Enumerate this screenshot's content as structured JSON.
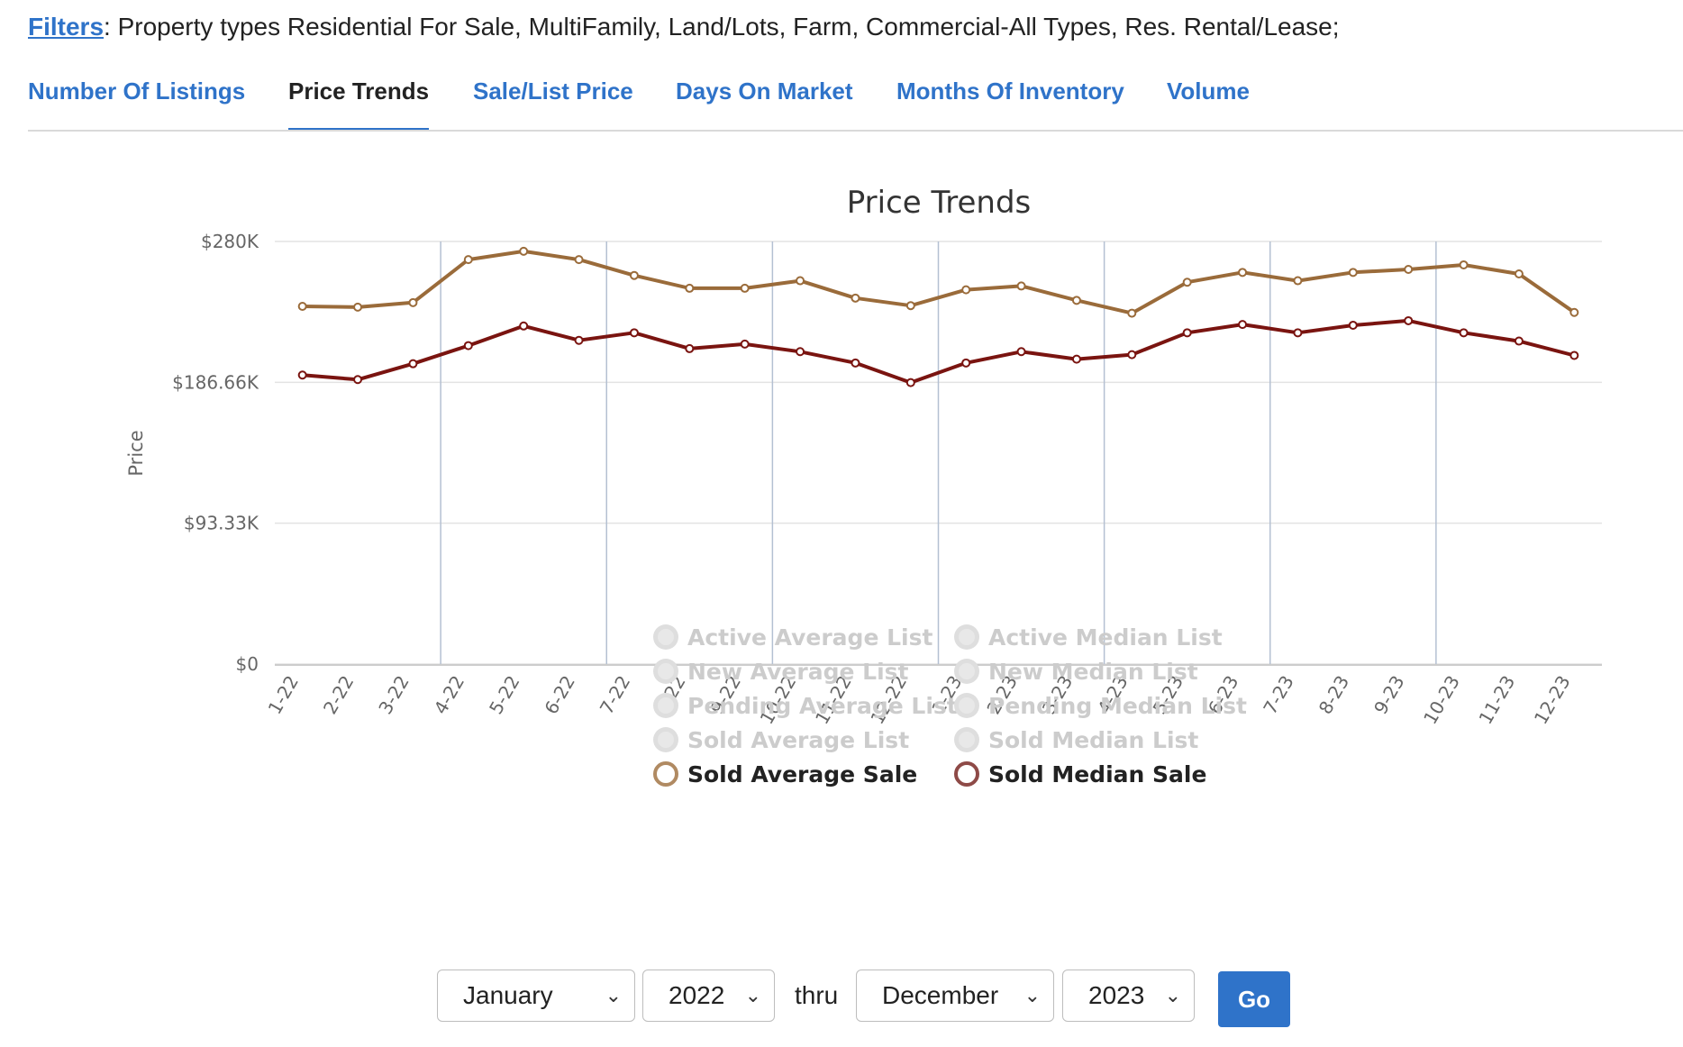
{
  "filters": {
    "link_label": "Filters",
    "text": ": Property types Residential For Sale, MultiFamily, Land/Lots, Farm, Commercial-All Types, Res. Rental/Lease;"
  },
  "tabs": [
    {
      "label": "Number Of Listings",
      "active": false
    },
    {
      "label": "Price Trends",
      "active": true
    },
    {
      "label": "Sale/List Price",
      "active": false
    },
    {
      "label": "Days On Market",
      "active": false
    },
    {
      "label": "Months Of Inventory",
      "active": false
    },
    {
      "label": "Volume",
      "active": false
    }
  ],
  "chart_data": {
    "type": "line",
    "title": "Price Trends",
    "xlabel": "",
    "ylabel": "Price",
    "ylim": [
      0,
      280000
    ],
    "y_ticks": [
      {
        "value": 0,
        "label": "$0"
      },
      {
        "value": 93333,
        "label": "$93.33K"
      },
      {
        "value": 186666,
        "label": "$186.66K"
      },
      {
        "value": 280000,
        "label": "$280K"
      }
    ],
    "grid": true,
    "categories": [
      "1-22",
      "2-22",
      "3-22",
      "4-22",
      "5-22",
      "6-22",
      "7-22",
      "8-22",
      "9-22",
      "10-22",
      "11-22",
      "12-22",
      "1-23",
      "2-23",
      "3-23",
      "4-23",
      "5-23",
      "6-23",
      "7-23",
      "8-23",
      "9-23",
      "10-23",
      "11-23",
      "12-23"
    ],
    "series": [
      {
        "name": "Sold Average Sale",
        "color": "#9a6b3a",
        "values": [
          237000,
          236500,
          239500,
          268000,
          273500,
          268000,
          257500,
          249000,
          249000,
          254000,
          242500,
          237500,
          248000,
          250500,
          241000,
          232500,
          253000,
          259500,
          254000,
          259500,
          261500,
          264500,
          258500,
          233000
        ]
      },
      {
        "name": "Sold Median Sale",
        "color": "#7a1410",
        "values": [
          191500,
          188500,
          199000,
          211000,
          224000,
          214500,
          219500,
          209000,
          212000,
          207000,
          199500,
          186500,
          199500,
          207000,
          202000,
          205000,
          219500,
          225000,
          219500,
          224500,
          227500,
          219500,
          214000,
          204500
        ]
      }
    ],
    "legend": {
      "position": "bottom",
      "items": [
        {
          "label": "Active Average List",
          "active": false
        },
        {
          "label": "Active Median List",
          "active": false
        },
        {
          "label": "New Average List",
          "active": false
        },
        {
          "label": "New Median List",
          "active": false
        },
        {
          "label": "Pending Average List",
          "active": false
        },
        {
          "label": "Pending Median List",
          "active": false
        },
        {
          "label": "Sold Average List",
          "active": false
        },
        {
          "label": "Sold Median List",
          "active": false
        },
        {
          "label": "Sold Average Sale",
          "active": true,
          "color": "#b08a62"
        },
        {
          "label": "Sold Median Sale",
          "active": true,
          "color": "#8e4a47"
        }
      ]
    }
  },
  "controls": {
    "start_month": "January",
    "start_year": "2022",
    "thru_label": "thru",
    "end_month": "December",
    "end_year": "2023",
    "go_label": "Go"
  }
}
